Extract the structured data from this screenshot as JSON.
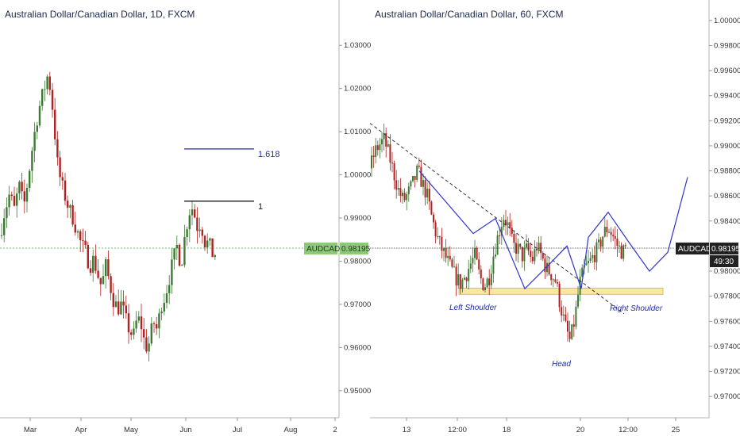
{
  "chart_data": [
    {
      "type": "candlestick",
      "title": "Australian Dollar/Canadian Dollar, 1D, FXCM",
      "x_ticks": [
        "Mar",
        "Apr",
        "May",
        "Jun",
        "Jul",
        "Aug",
        "2"
      ],
      "y_ticks": [
        "1.03000",
        "1.02000",
        "1.01000",
        "1.00000",
        "0.99000",
        "0.98000",
        "0.97000",
        "0.96000",
        "0.95000"
      ],
      "ylim": [
        0.945,
        1.035
      ],
      "current_price": "0.98195",
      "symbol_tag": "AUDCAD",
      "fib_levels": [
        {
          "label": "1.618",
          "price": 1.006,
          "color": "#1f2aa8"
        },
        {
          "label": "1",
          "price": 0.9939,
          "color": "#000000"
        }
      ],
      "path": [
        [
          0,
          0.986
        ],
        [
          5,
          0.991
        ],
        [
          12,
          0.9955
        ],
        [
          18,
          0.992
        ],
        [
          24,
          0.9975
        ],
        [
          30,
          0.9925
        ],
        [
          36,
          1.0
        ],
        [
          42,
          1.008
        ],
        [
          48,
          1.0145
        ],
        [
          55,
          1.0195
        ],
        [
          60,
          1.023
        ],
        [
          64,
          1.0195
        ],
        [
          68,
          1.012
        ],
        [
          72,
          1.003
        ],
        [
          77,
          0.998
        ],
        [
          82,
          0.995
        ],
        [
          87,
          0.992
        ],
        [
          92,
          0.99
        ],
        [
          97,
          0.987
        ],
        [
          102,
          0.984
        ],
        [
          108,
          0.982
        ],
        [
          113,
          0.979
        ],
        [
          118,
          0.9805
        ],
        [
          123,
          0.977
        ],
        [
          128,
          0.974
        ],
        [
          133,
          0.979
        ],
        [
          138,
          0.975
        ],
        [
          143,
          0.971
        ],
        [
          148,
          0.969
        ],
        [
          153,
          0.97
        ],
        [
          158,
          0.9665
        ],
        [
          163,
          0.964
        ],
        [
          168,
          0.9625
        ],
        [
          173,
          0.967
        ],
        [
          178,
          0.965
        ],
        [
          183,
          0.96
        ],
        [
          188,
          0.961
        ],
        [
          193,
          0.966
        ],
        [
          198,
          0.964
        ],
        [
          203,
          0.97
        ],
        [
          208,
          0.972
        ],
        [
          213,
          0.976
        ],
        [
          218,
          0.98
        ],
        [
          223,
          0.9835
        ],
        [
          228,
          0.979
        ],
        [
          233,
          0.986
        ],
        [
          238,
          0.9915
        ],
        [
          243,
          0.9925
        ],
        [
          248,
          0.988
        ],
        [
          253,
          0.989
        ],
        [
          258,
          0.9845
        ],
        [
          263,
          0.984
        ],
        [
          268,
          0.9815
        ],
        [
          273,
          0.9819
        ]
      ]
    },
    {
      "type": "candlestick",
      "title": "Australian Dollar/Canadian Dollar, 60, FXCM",
      "x_ticks": [
        "13",
        "12:00",
        "18",
        "20",
        "12:00",
        "25"
      ],
      "y_ticks": [
        "1.00000",
        "0.99800",
        "0.99600",
        "0.99400",
        "0.99200",
        "0.99000",
        "0.98800",
        "0.98600",
        "0.98400",
        "0.98000",
        "0.97800",
        "0.97600",
        "0.97400",
        "0.97200",
        "0.97000"
      ],
      "ylim": [
        0.969,
        1.001
      ],
      "current_price": "0.98195",
      "symbol_tag": "AUDCAD",
      "countdown": "49:30",
      "labels": [
        "Left Shoulder",
        "Head",
        "Right Shoulder"
      ],
      "neckline_zone": [
        0.97815,
        0.97865
      ],
      "trendline": [
        [
          0,
          0.9918
        ],
        [
          320,
          0.9766
        ]
      ],
      "pattern_path": [
        [
          62,
          0.988
        ],
        [
          130,
          0.983
        ],
        [
          158,
          0.9842
        ],
        [
          195,
          0.9786
        ],
        [
          225,
          0.9805
        ],
        [
          248,
          0.982
        ],
        [
          266,
          0.9786
        ],
        [
          275,
          0.9827
        ],
        [
          300,
          0.9847
        ],
        [
          325,
          0.9824
        ],
        [
          352,
          0.98
        ],
        [
          375,
          0.9815
        ],
        [
          400,
          0.9875
        ]
      ],
      "price_path": [
        [
          0,
          0.9882
        ],
        [
          6,
          0.9895
        ],
        [
          12,
          0.9901
        ],
        [
          18,
          0.9905
        ],
        [
          24,
          0.9892
        ],
        [
          30,
          0.9878
        ],
        [
          36,
          0.9864
        ],
        [
          42,
          0.9856
        ],
        [
          48,
          0.9862
        ],
        [
          54,
          0.987
        ],
        [
          60,
          0.988
        ],
        [
          66,
          0.987
        ],
        [
          72,
          0.986
        ],
        [
          78,
          0.9842
        ],
        [
          84,
          0.9828
        ],
        [
          90,
          0.9818
        ],
        [
          96,
          0.981
        ],
        [
          102,
          0.9802
        ],
        [
          108,
          0.9795
        ],
        [
          114,
          0.979
        ],
        [
          120,
          0.9796
        ],
        [
          126,
          0.9805
        ],
        [
          132,
          0.9812
        ],
        [
          138,
          0.9796
        ],
        [
          144,
          0.9788
        ],
        [
          150,
          0.9795
        ],
        [
          156,
          0.9815
        ],
        [
          162,
          0.983
        ],
        [
          168,
          0.9844
        ],
        [
          174,
          0.9836
        ],
        [
          180,
          0.982
        ],
        [
          186,
          0.9818
        ],
        [
          192,
          0.9812
        ],
        [
          198,
          0.9818
        ],
        [
          204,
          0.9808
        ],
        [
          210,
          0.982
        ],
        [
          216,
          0.9812
        ],
        [
          222,
          0.9802
        ],
        [
          228,
          0.9798
        ],
        [
          234,
          0.9792
        ],
        [
          240,
          0.9772
        ],
        [
          246,
          0.9756
        ],
        [
          252,
          0.9744
        ],
        [
          258,
          0.9762
        ],
        [
          264,
          0.979
        ],
        [
          270,
          0.9802
        ],
        [
          276,
          0.9806
        ],
        [
          282,
          0.9813
        ],
        [
          288,
          0.9819
        ],
        [
          294,
          0.983
        ],
        [
          300,
          0.9835
        ],
        [
          306,
          0.9828
        ],
        [
          312,
          0.982
        ],
        [
          318,
          0.9815
        ],
        [
          324,
          0.98195
        ]
      ]
    }
  ]
}
